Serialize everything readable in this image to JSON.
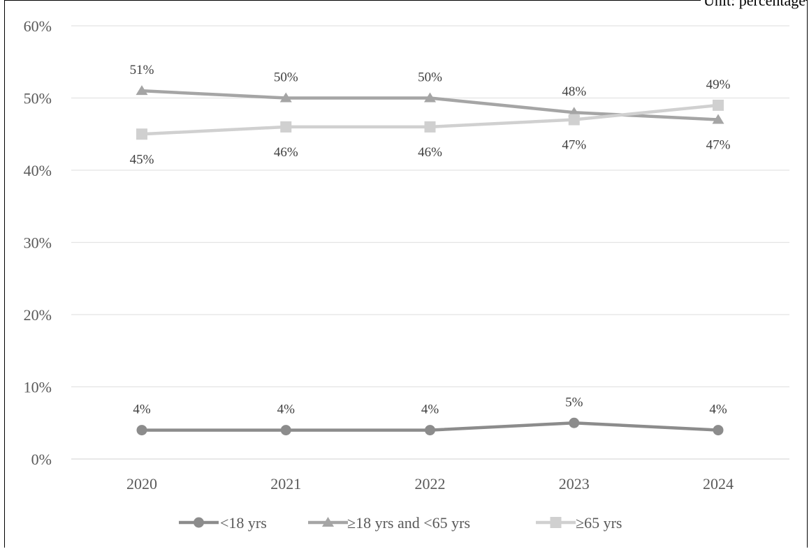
{
  "unit_note": "Unit: percentage",
  "chart_data": {
    "type": "line",
    "categories": [
      "2020",
      "2021",
      "2022",
      "2023",
      "2024"
    ],
    "ylim": [
      0,
      60
    ],
    "yticks": [
      "0%",
      "10%",
      "20%",
      "30%",
      "40%",
      "50%",
      "60%"
    ],
    "grid": true,
    "legend_position": "bottom",
    "series": [
      {
        "name": "<18 yrs",
        "marker": "circle",
        "color": "#8c8c8c",
        "values": [
          4,
          4,
          4,
          5,
          4
        ],
        "labels": [
          "4%",
          "4%",
          "4%",
          "5%",
          "4%"
        ],
        "label_position": "above"
      },
      {
        "name": "≥18 yrs and <65 yrs",
        "marker": "triangle",
        "color": "#a5a5a5",
        "values": [
          51,
          50,
          50,
          48,
          47
        ],
        "labels": [
          "51%",
          "50%",
          "50%",
          "48%",
          "47%"
        ],
        "label_position": "mixed"
      },
      {
        "name": "≥65 yrs",
        "marker": "square",
        "color": "#d0d0d0",
        "values": [
          45,
          46,
          46,
          47,
          49
        ],
        "labels": [
          "45%",
          "46%",
          "46%",
          "47%",
          "49%"
        ],
        "label_position": "mixed"
      }
    ]
  }
}
